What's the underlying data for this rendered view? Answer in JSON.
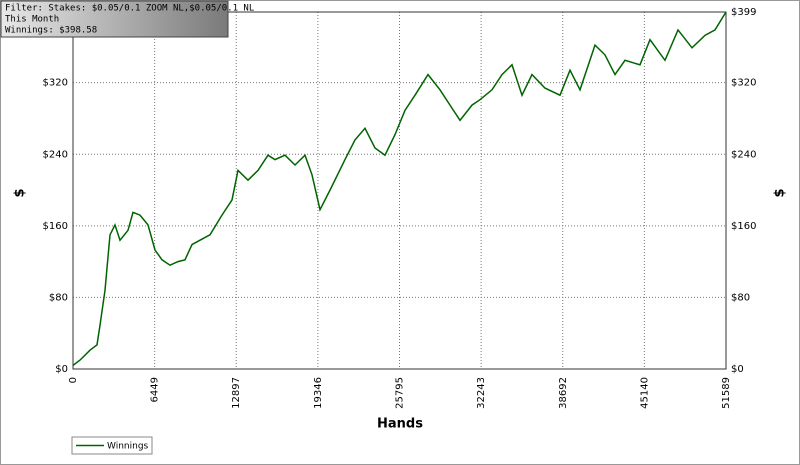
{
  "info_box": [
    "Filter: Stakes: $0.05/0.1 ZOOM NL,$0.05/0.1 NL",
    "This Month",
    "Winnings: $398.58"
  ],
  "chart_data": {
    "type": "line",
    "xlabel": "Hands",
    "ylabel": "$",
    "y2label": "$",
    "x": [
      0,
      553,
      1343,
      1896,
      2133,
      2528,
      2923,
      3318,
      3713,
      4345,
      4740,
      5293,
      5925,
      6478,
      7031,
      7663,
      8295,
      8848,
      9401,
      10033,
      10823,
      11771,
      12561,
      13035,
      13825,
      14615,
      15405,
      15958,
      16748,
      17538,
      18328,
      18881,
      19513,
      20303,
      21488,
      22278,
      23068,
      23858,
      24648,
      25438,
      26228,
      27018,
      28045,
      28993,
      29783,
      30573,
      31521,
      32153,
      33101,
      33891,
      34681,
      35471,
      36261,
      37288,
      38473,
      39263,
      40053,
      41238,
      42028,
      42818,
      43608,
      44793,
      45583,
      46768,
      47795,
      48901,
      49928,
      50718,
      51589
    ],
    "series": [
      {
        "name": "Winnings",
        "color": "#006400",
        "values": [
          4,
          10,
          21,
          27,
          49,
          88,
          150,
          161,
          144,
          155,
          175,
          172,
          161,
          133,
          122,
          116,
          120,
          122,
          139,
          144,
          150,
          172,
          189,
          222,
          211,
          222,
          239,
          234,
          239,
          228,
          239,
          217,
          178,
          200,
          234,
          256,
          269,
          247,
          239,
          262,
          289,
          306,
          329,
          312,
          295,
          278,
          295,
          301,
          312,
          329,
          340,
          306,
          329,
          314,
          306,
          334,
          312,
          362,
          351,
          329,
          345,
          340,
          368,
          345,
          379,
          359,
          373,
          379,
          399
        ]
      }
    ],
    "xlim": [
      0,
      51589
    ],
    "xticks": [
      0,
      6449,
      12897,
      19346,
      25795,
      32243,
      38692,
      45140,
      51589
    ],
    "ylim": [
      0,
      399
    ],
    "yticks": [
      {
        "value": 0,
        "label": "$0"
      },
      {
        "value": 80,
        "label": "$80"
      },
      {
        "value": 160,
        "label": "$160"
      },
      {
        "value": 240,
        "label": "$240"
      },
      {
        "value": 320,
        "label": "$320"
      },
      {
        "value": 399,
        "label": "$399"
      }
    ],
    "grid": true,
    "legend": "bottom-left"
  }
}
